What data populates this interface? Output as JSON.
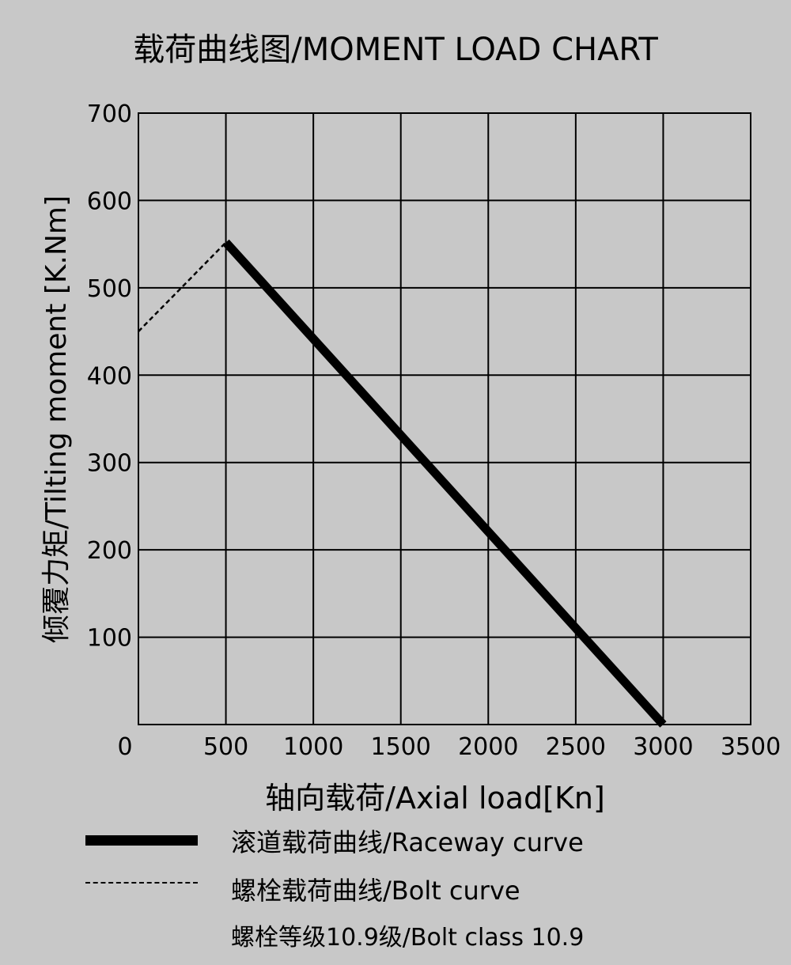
{
  "chart_data": {
    "type": "line",
    "title": "载荷曲线图/MOMENT LOAD CHART",
    "xlabel": "轴向载荷/Axial load[Kn]",
    "ylabel": "倾覆力矩/Tilting moment [K.Nm]",
    "xlim": [
      0,
      3500
    ],
    "ylim": [
      0,
      700
    ],
    "x_ticks": [
      0,
      500,
      1000,
      1500,
      2000,
      2500,
      3000,
      3500
    ],
    "y_ticks": [
      100,
      200,
      300,
      400,
      500,
      600,
      700
    ],
    "grid": true,
    "series": [
      {
        "name": "滚道载荷曲线/Raceway curve",
        "style": "solid-thick",
        "x": [
          500,
          3000
        ],
        "y": [
          552,
          0
        ]
      },
      {
        "name": "螺栓载荷曲线/Bolt curve",
        "style": "dashed",
        "x": [
          0,
          500
        ],
        "y": [
          450,
          552
        ]
      }
    ],
    "note": "螺栓等级10.9级/Bolt class 10.9"
  },
  "colors": {
    "background": "#c8c8c8",
    "grid": "#000000",
    "line": "#000000"
  }
}
